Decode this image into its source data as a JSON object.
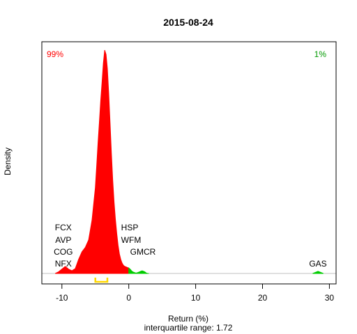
{
  "chart_data": {
    "type": "area",
    "title": "2015-08-24",
    "xlabel": "Return (%)",
    "ylabel": "Density",
    "subtitle": "interquartile range: 1.72",
    "xlim": [
      -13.0,
      31.0
    ],
    "ylim": [
      -0.002,
      0.42
    ],
    "xticks": [
      -10,
      0,
      10,
      20,
      30
    ],
    "grid": false,
    "density": {
      "x": [
        -11.0,
        -10.5,
        -10.0,
        -9.5,
        -9.0,
        -8.5,
        -8.0,
        -7.5,
        -7.0,
        -6.5,
        -6.0,
        -5.5,
        -5.0,
        -4.8,
        -4.6,
        -4.4,
        -4.2,
        -4.0,
        -3.8,
        -3.6,
        -3.4,
        -3.2,
        -3.0,
        -2.8,
        -2.6,
        -2.4,
        -2.2,
        -2.0,
        -1.8,
        -1.6,
        -1.4,
        -1.2,
        -1.0,
        -0.8,
        -0.6,
        -0.4,
        -0.2,
        0.0,
        0.2,
        0.4,
        0.6,
        0.8,
        1.0,
        1.2,
        1.4,
        1.6,
        1.8,
        2.0,
        2.2,
        2.4,
        2.6,
        2.8,
        3.0,
        27.5,
        27.9,
        28.3,
        28.7,
        29.1
      ],
      "y": [
        0.0,
        0.003,
        0.008,
        0.013,
        0.008,
        0.005,
        0.009,
        0.026,
        0.04,
        0.048,
        0.062,
        0.098,
        0.158,
        0.198,
        0.24,
        0.278,
        0.318,
        0.352,
        0.388,
        0.412,
        0.404,
        0.378,
        0.332,
        0.278,
        0.222,
        0.172,
        0.132,
        0.1,
        0.074,
        0.052,
        0.036,
        0.026,
        0.019,
        0.015,
        0.013,
        0.012,
        0.011,
        0.01,
        0.008,
        0.005,
        0.003,
        0.002,
        0.001,
        0.001,
        0.002,
        0.003,
        0.004,
        0.005,
        0.004,
        0.003,
        0.001,
        0.0,
        0.0,
        0.0,
        0.002,
        0.004,
        0.002,
        0.0
      ],
      "split_at": 0,
      "negative_color": "#ff0000",
      "positive_color": "#00cc00"
    },
    "share_negative": "99%",
    "share_positive": "1%",
    "negative_labels": [
      {
        "text": "FCX",
        "x": -10
      },
      {
        "text": "AVP",
        "x": -10
      },
      {
        "text": "COG",
        "x": -10
      },
      {
        "text": "NFX",
        "x": -10
      }
    ],
    "positive_labels": [
      {
        "text": "HSP",
        "x": 0.4
      },
      {
        "text": "WFM",
        "x": 0.6
      },
      {
        "text": "GMCR",
        "x": 2.5
      },
      {
        "text": "GAS",
        "x": 28.3
      }
    ],
    "iqr_bracket": {
      "low": -5.0,
      "high": -3.2,
      "color": "#ffd700"
    },
    "baseline_color": "#c0c0c0"
  }
}
